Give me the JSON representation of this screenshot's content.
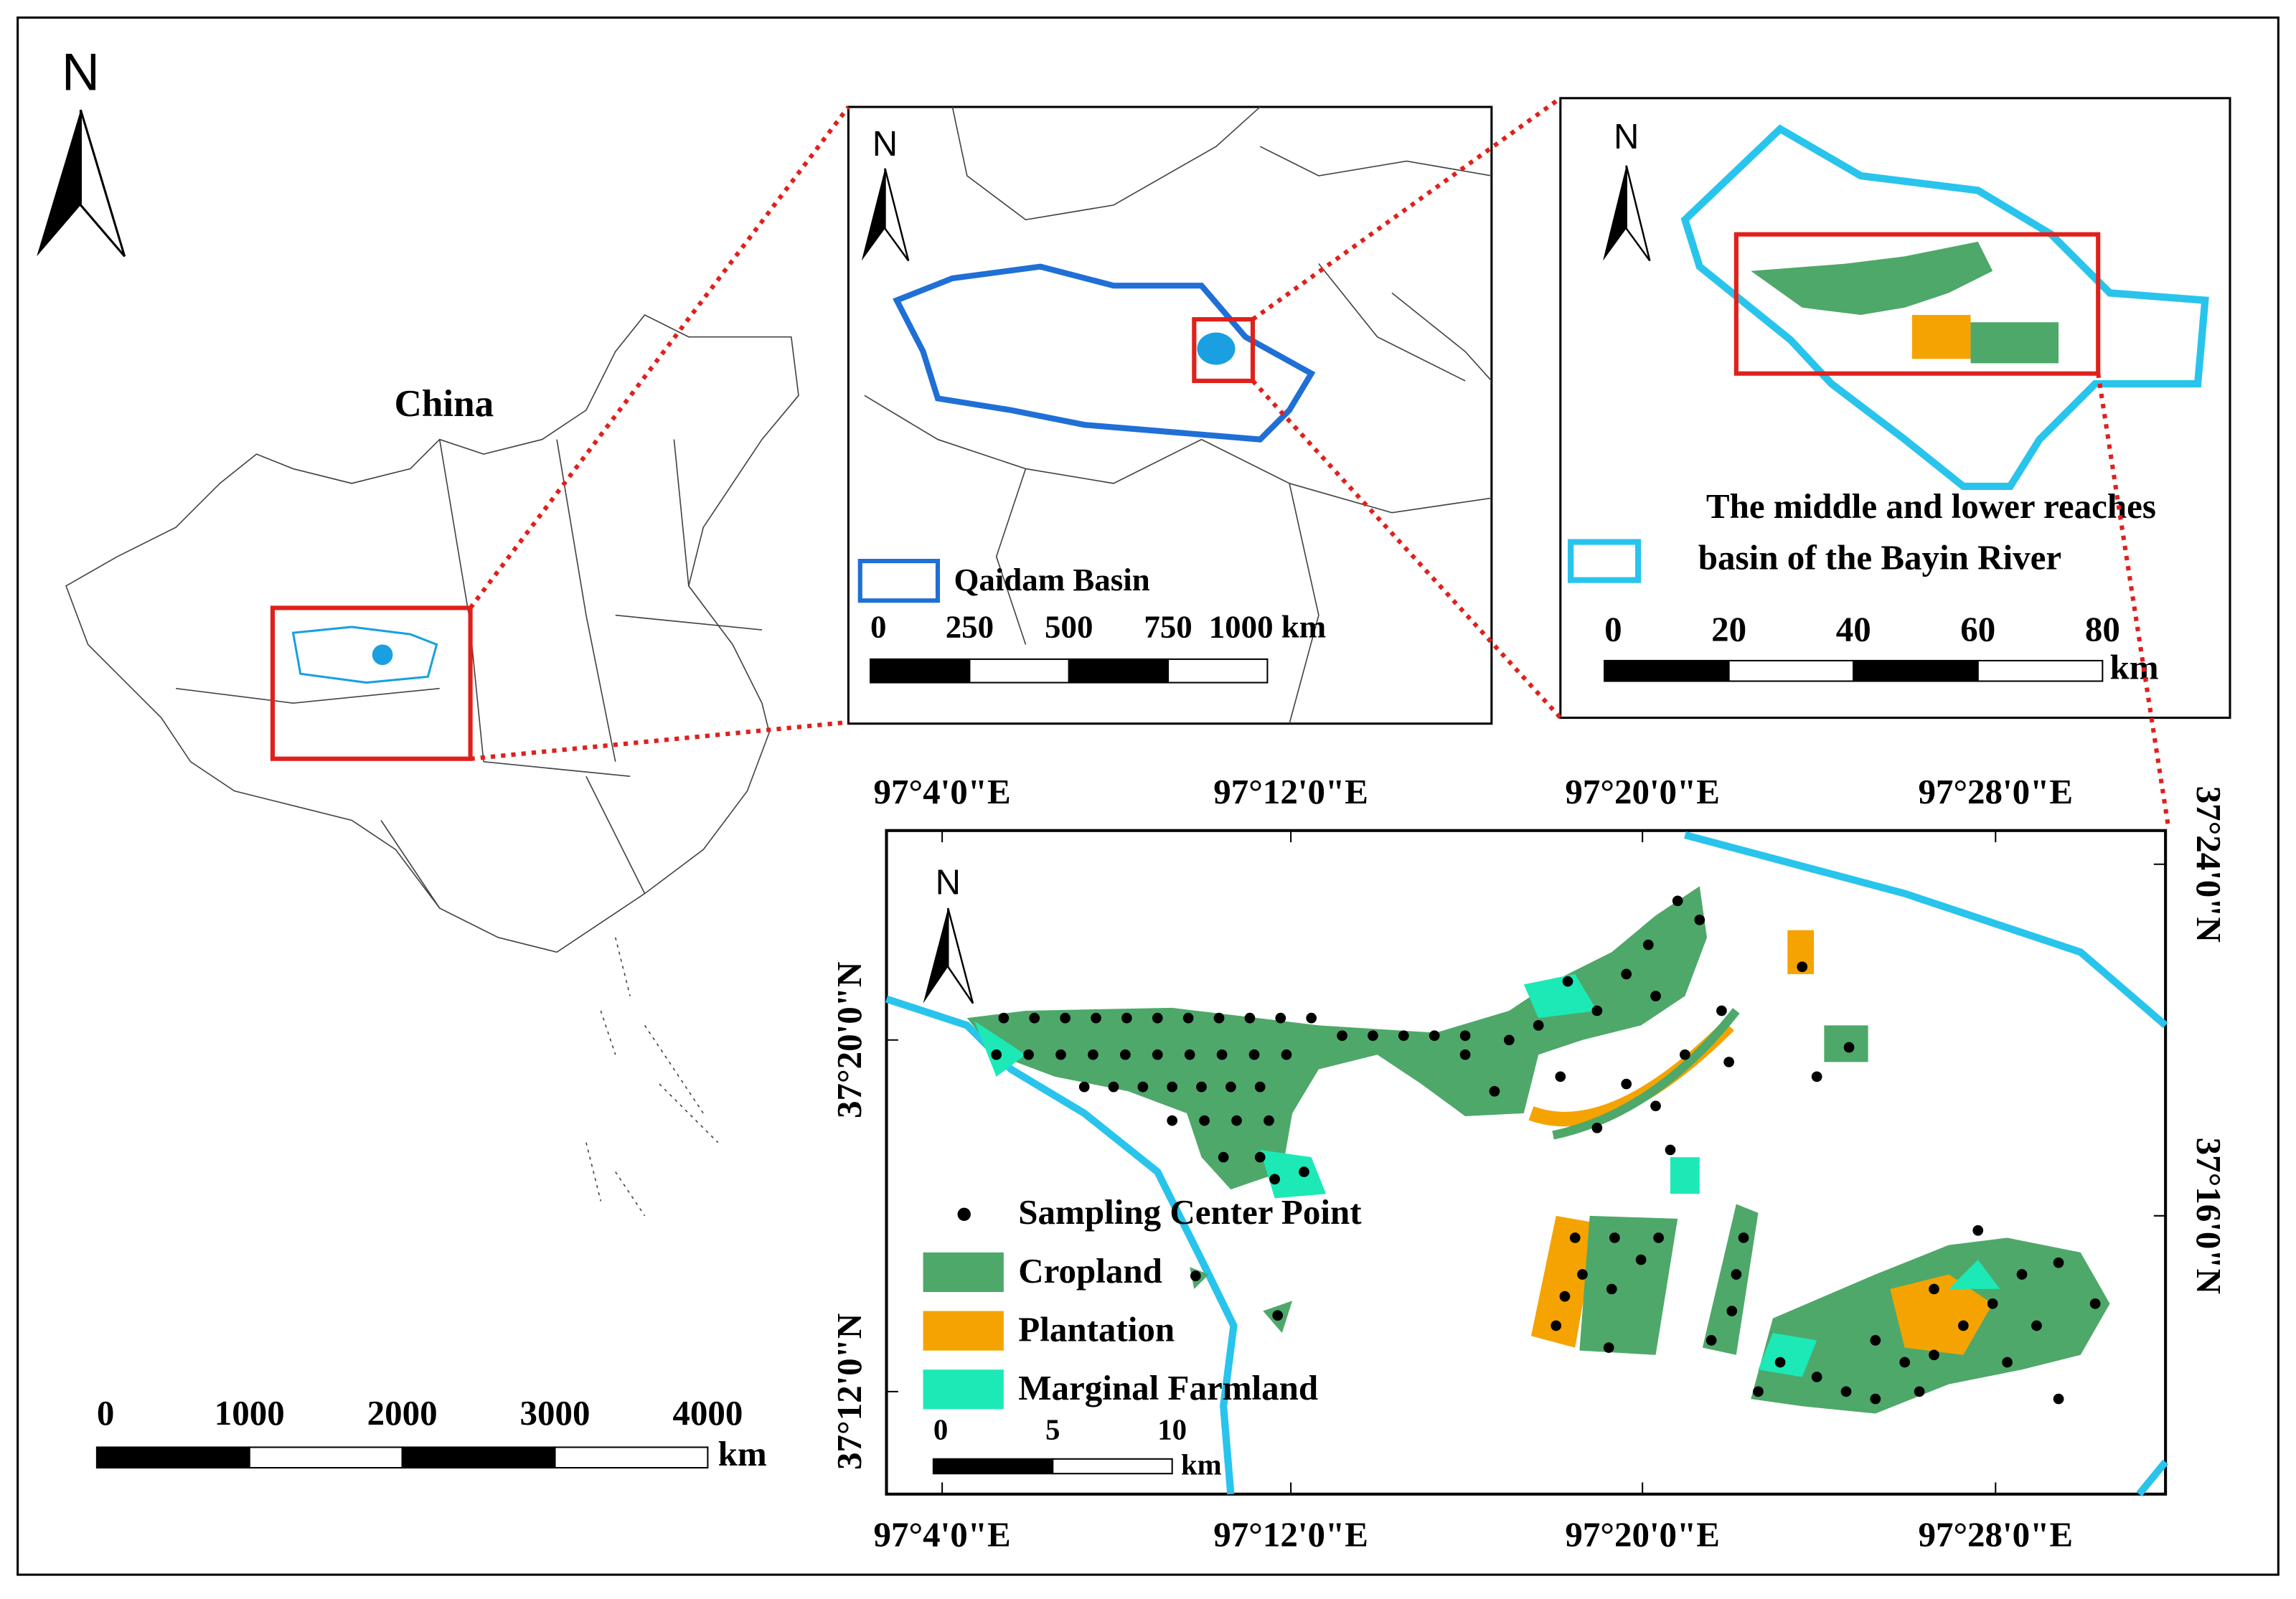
{
  "overview": {
    "north": "N",
    "label": "China",
    "scale": {
      "ticks": [
        "0",
        "1000",
        "2000",
        "3000",
        "4000"
      ],
      "unit": "km"
    }
  },
  "basin_map": {
    "north": "N",
    "legend": "Qaidam Basin",
    "scale": {
      "ticks": [
        "0",
        "250",
        "500",
        "750",
        "1000 km"
      ]
    }
  },
  "river_map": {
    "north": "N",
    "legend": [
      "The middle and lower reaches",
      "basin of the Bayin River"
    ],
    "scale": {
      "ticks": [
        "0",
        "20",
        "40",
        "60",
        "80"
      ],
      "unit": "km"
    }
  },
  "detail_map": {
    "north": "N",
    "top_labels": [
      "97°4'0\"E",
      "97°12'0\"E",
      "97°20'0\"E",
      "97°28'0\"E"
    ],
    "bottom_labels": [
      "97°4'0\"E",
      "97°12'0\"E",
      "97°20'0\"E",
      "97°28'0\"E"
    ],
    "left_labels": [
      "37°20'0\"N",
      "37°12'0\"N"
    ],
    "right_labels": [
      "37°24'0\"N",
      "37°16'0\"N"
    ],
    "legend": [
      "Sampling Center Point",
      "Cropland",
      "Plantation",
      "Marginal Farmland"
    ],
    "scale": {
      "ticks": [
        "0",
        "5",
        "10"
      ],
      "unit": "km"
    }
  }
}
